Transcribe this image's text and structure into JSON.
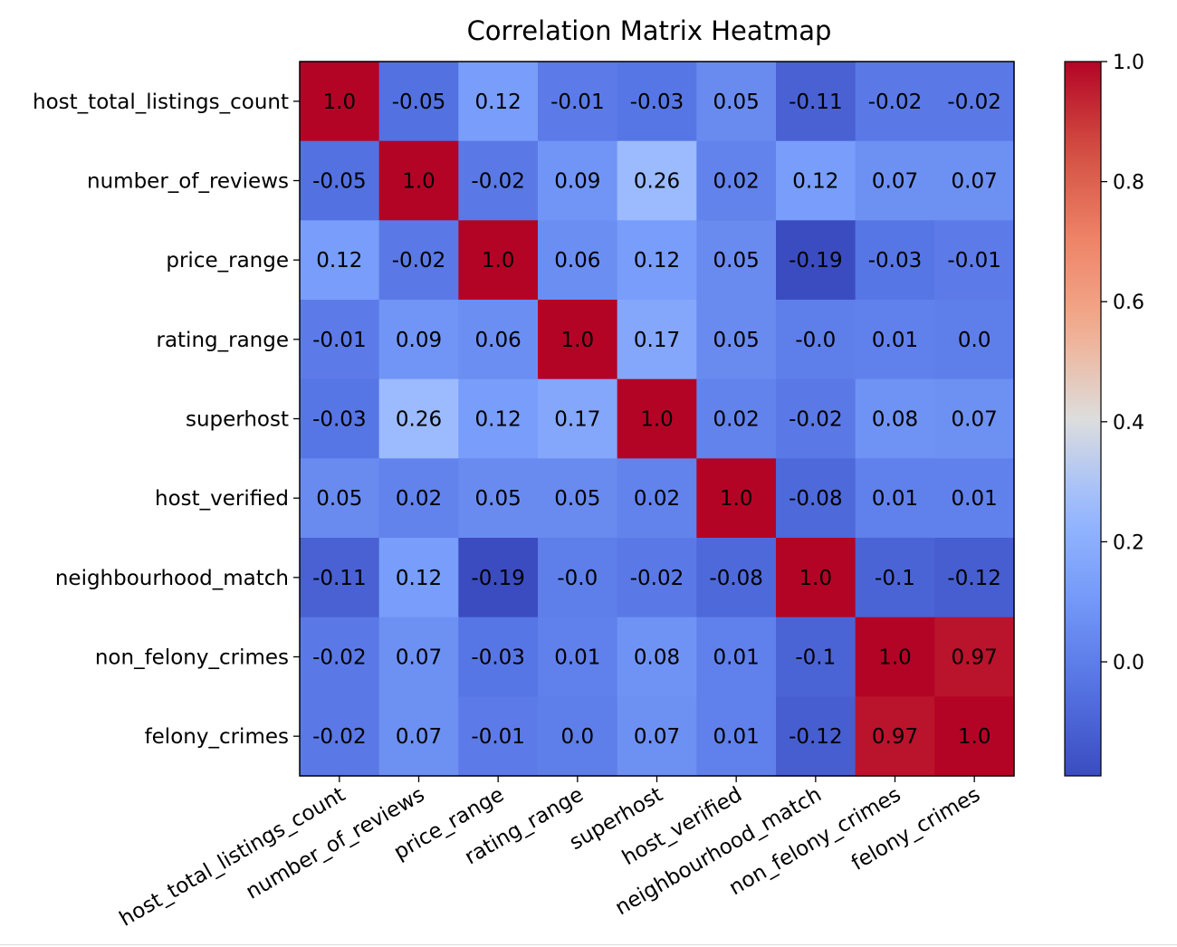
{
  "chart_data": {
    "type": "heatmap",
    "title": "Correlation Matrix Heatmap",
    "colormap": "coolwarm",
    "rows": [
      "host_total_listings_count",
      "number_of_reviews",
      "price_range",
      "rating_range",
      "superhost",
      "host_verified",
      "neighbourhood_match",
      "non_felony_crimes",
      "felony_crimes"
    ],
    "columns": [
      "host_total_listings_count",
      "number_of_reviews",
      "price_range",
      "rating_range",
      "superhost",
      "host_verified",
      "neighbourhood_match",
      "non_felony_crimes",
      "felony_crimes"
    ],
    "values": [
      [
        1.0,
        -0.05,
        0.12,
        -0.01,
        -0.03,
        0.05,
        -0.11,
        -0.02,
        -0.02
      ],
      [
        -0.05,
        1.0,
        -0.02,
        0.09,
        0.26,
        0.02,
        0.12,
        0.07,
        0.07
      ],
      [
        0.12,
        -0.02,
        1.0,
        0.06,
        0.12,
        0.05,
        -0.19,
        -0.03,
        -0.01
      ],
      [
        -0.01,
        0.09,
        0.06,
        1.0,
        0.17,
        0.05,
        -0.0,
        0.01,
        0.0
      ],
      [
        -0.03,
        0.26,
        0.12,
        0.17,
        1.0,
        0.02,
        -0.02,
        0.08,
        0.07
      ],
      [
        0.05,
        0.02,
        0.05,
        0.05,
        0.02,
        1.0,
        -0.08,
        0.01,
        0.01
      ],
      [
        -0.11,
        0.12,
        -0.19,
        -0.0,
        -0.02,
        -0.08,
        1.0,
        -0.1,
        -0.12
      ],
      [
        -0.02,
        0.07,
        -0.03,
        0.01,
        0.08,
        0.01,
        -0.1,
        1.0,
        0.97
      ],
      [
        -0.02,
        0.07,
        -0.01,
        0.0,
        0.07,
        0.01,
        -0.12,
        0.97,
        1.0
      ]
    ],
    "cell_text": [
      [
        "1.0",
        "-0.05",
        "0.12",
        "-0.01",
        "-0.03",
        "0.05",
        "-0.11",
        "-0.02",
        "-0.02"
      ],
      [
        "-0.05",
        "1.0",
        "-0.02",
        "0.09",
        "0.26",
        "0.02",
        "0.12",
        "0.07",
        "0.07"
      ],
      [
        "0.12",
        "-0.02",
        "1.0",
        "0.06",
        "0.12",
        "0.05",
        "-0.19",
        "-0.03",
        "-0.01"
      ],
      [
        "-0.01",
        "0.09",
        "0.06",
        "1.0",
        "0.17",
        "0.05",
        "-0.0",
        "0.01",
        "0.0"
      ],
      [
        "-0.03",
        "0.26",
        "0.12",
        "0.17",
        "1.0",
        "0.02",
        "-0.02",
        "0.08",
        "0.07"
      ],
      [
        "0.05",
        "0.02",
        "0.05",
        "0.05",
        "0.02",
        "1.0",
        "-0.08",
        "0.01",
        "0.01"
      ],
      [
        "-0.11",
        "0.12",
        "-0.19",
        "-0.0",
        "-0.02",
        "-0.08",
        "1.0",
        "-0.1",
        "-0.12"
      ],
      [
        "-0.02",
        "0.07",
        "-0.03",
        "0.01",
        "0.08",
        "0.01",
        "-0.1",
        "1.0",
        "0.97"
      ],
      [
        "-0.02",
        "0.07",
        "-0.01",
        "0.0",
        "0.07",
        "0.01",
        "-0.12",
        "0.97",
        "1.0"
      ]
    ],
    "colorbar": {
      "min": -0.19,
      "max": 1.0,
      "ticks": [
        0.0,
        0.2,
        0.4,
        0.6,
        0.8,
        1.0
      ],
      "tick_labels": [
        "0.0",
        "0.2",
        "0.4",
        "0.6",
        "0.8",
        "1.0"
      ]
    },
    "xlabel": "",
    "ylabel": ""
  }
}
